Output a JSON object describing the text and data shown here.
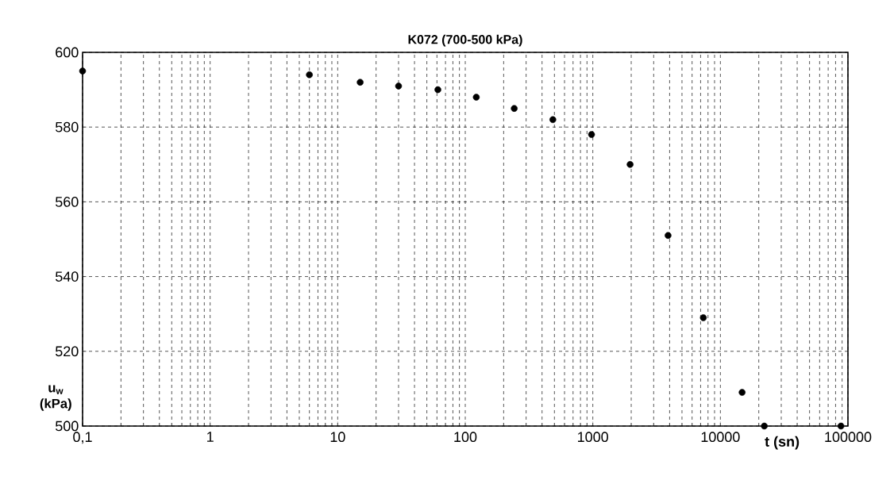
{
  "chart_data": {
    "type": "scatter",
    "title": "K072 (700-500 kPa)",
    "xlabel": "t (sn)",
    "ylabel": "u$_{w}$ (kPa)",
    "log": "x",
    "grid": true,
    "marker": "circle",
    "x": [
      0.1,
      6,
      15,
      30,
      61,
      122,
      242,
      486,
      977,
      1960,
      3890,
      7350,
      14800,
      22100,
      88100
    ],
    "series": [
      {
        "color": "#000000",
        "values": [
          595,
          594,
          592,
          591,
          590,
          588,
          585,
          582,
          578,
          570,
          551,
          529,
          509,
          500,
          500
        ]
      }
    ],
    "xlim": [
      0.1,
      100000
    ],
    "ylim": [
      500,
      600
    ],
    "xticks": [
      {
        "value": 0.1,
        "label": "0,1"
      },
      1,
      10,
      100,
      1000,
      10000,
      100000
    ],
    "yticks": [
      500,
      520,
      540,
      560,
      580,
      600
    ]
  }
}
